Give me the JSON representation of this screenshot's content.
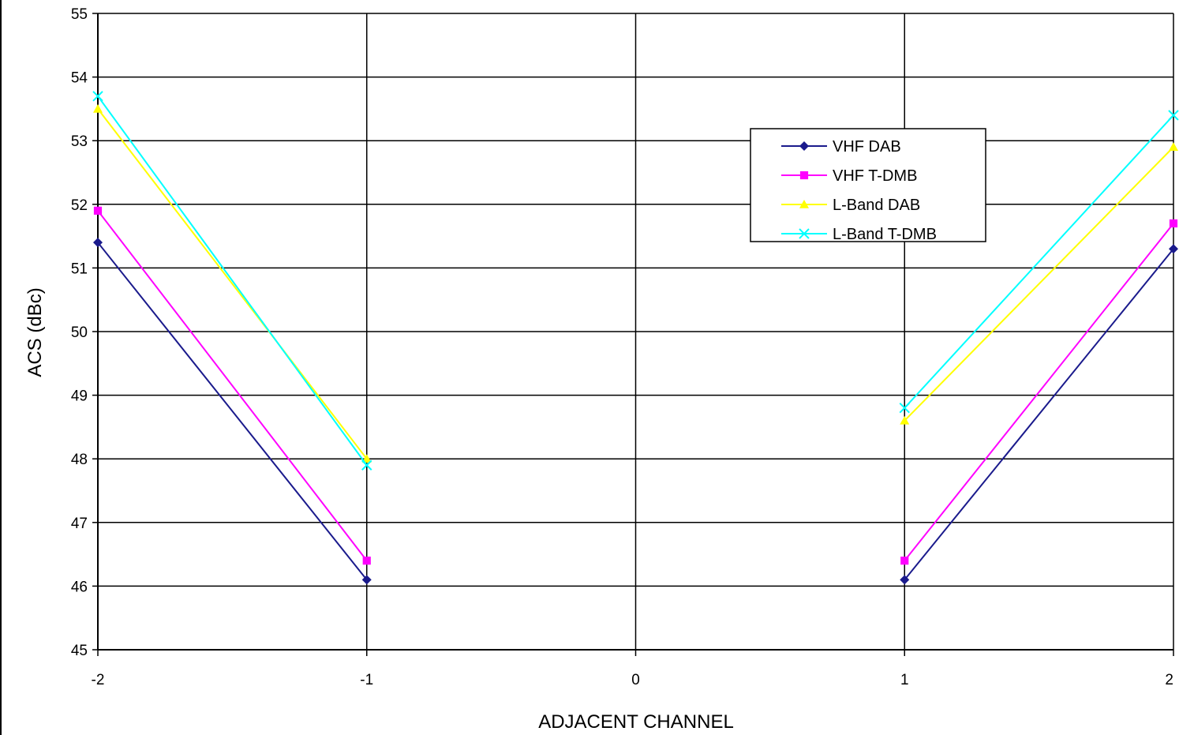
{
  "chart_data": {
    "type": "line",
    "xlabel": "ADJACENT CHANNEL",
    "ylabel": "ACS (dBc)",
    "x_ticks": [
      "-2",
      "-1",
      "0",
      "1",
      "2"
    ],
    "y_ticks": [
      "45",
      "46",
      "47",
      "48",
      "49",
      "50",
      "51",
      "52",
      "53",
      "54",
      "55"
    ],
    "xlim": [
      -2,
      2
    ],
    "ylim": [
      45,
      55
    ],
    "grid": true,
    "legend_position": "upper-right",
    "series": [
      {
        "name": "VHF DAB",
        "color": "#1a1a8c",
        "marker": "diamond",
        "segments": [
          [
            {
              "x": -2,
              "y": 51.4
            },
            {
              "x": -1,
              "y": 46.1
            }
          ],
          [
            {
              "x": 1,
              "y": 46.1
            },
            {
              "x": 2,
              "y": 51.3
            }
          ]
        ]
      },
      {
        "name": "VHF T-DMB",
        "color": "#ff00ff",
        "marker": "square",
        "segments": [
          [
            {
              "x": -2,
              "y": 51.9
            },
            {
              "x": -1,
              "y": 46.4
            }
          ],
          [
            {
              "x": 1,
              "y": 46.4
            },
            {
              "x": 2,
              "y": 51.7
            }
          ]
        ]
      },
      {
        "name": "L-Band DAB",
        "color": "#ffff00",
        "marker": "triangle",
        "segments": [
          [
            {
              "x": -2,
              "y": 53.5
            },
            {
              "x": -1,
              "y": 48.0
            }
          ],
          [
            {
              "x": 1,
              "y": 48.6
            },
            {
              "x": 2,
              "y": 52.9
            }
          ]
        ]
      },
      {
        "name": "L-Band T-DMB",
        "color": "#00ffff",
        "marker": "x",
        "segments": [
          [
            {
              "x": -2,
              "y": 53.7
            },
            {
              "x": -1,
              "y": 47.9
            }
          ],
          [
            {
              "x": 1,
              "y": 48.8
            },
            {
              "x": 2,
              "y": 53.4
            }
          ]
        ]
      }
    ]
  }
}
